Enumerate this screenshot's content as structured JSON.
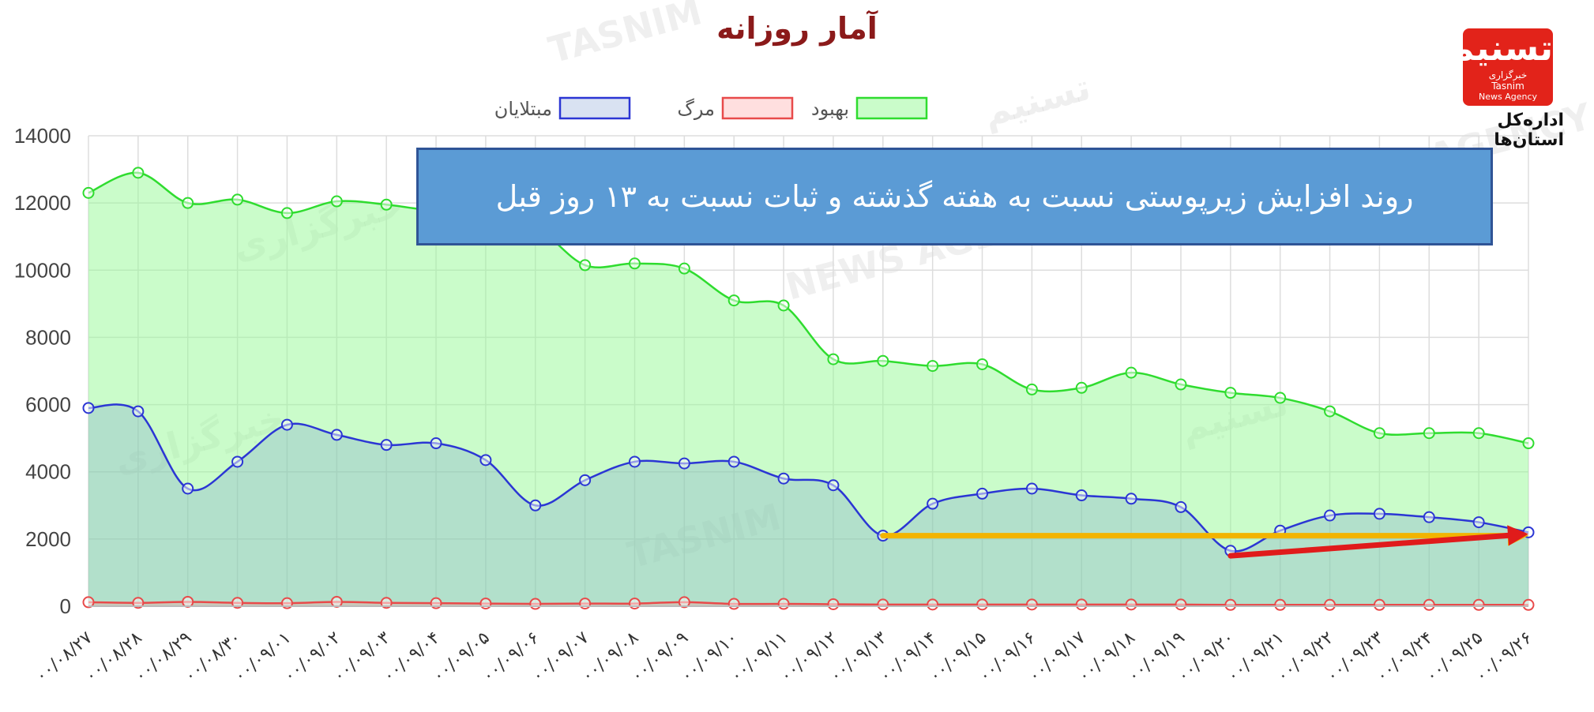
{
  "page": {
    "title": "آمار روزانه",
    "banner": "روند افزایش زیرپوستی نسبت به هفته گذشته و ثبات نسبت به ۱۳ روز قبل",
    "logo": {
      "glyph": "تسنیم",
      "agency_fa": "خبرگزاری",
      "agency_en": "Tasnim",
      "agency_sub": "News Agency",
      "caption": "اداره‌کل استان‌ها",
      "color": "#e2231a"
    },
    "watermarks": [
      "TASNIM",
      "NEWS AGENCY",
      "خبرگزاری",
      "تسنیم"
    ]
  },
  "chart_data": {
    "type": "line",
    "ylim": [
      0,
      14000
    ],
    "yticks": [
      "0",
      "2000",
      "4000",
      "6000",
      "8000",
      "10000",
      "12000",
      "14000"
    ],
    "categories": [
      "۰۰/۰۸/۲۷",
      "۰۰/۰۸/۲۸",
      "۰۰/۰۸/۲۹",
      "۰۰/۰۸/۳۰",
      "۰۰/۰۹/۰۱",
      "۰۰/۰۹/۰۲",
      "۰۰/۰۹/۰۳",
      "۰۰/۰۹/۰۴",
      "۰۰/۰۹/۰۵",
      "۰۰/۰۹/۰۶",
      "۰۰/۰۹/۰۷",
      "۰۰/۰۹/۰۸",
      "۰۰/۰۹/۰۹",
      "۰۰/۰۹/۱۰",
      "۰۰/۰۹/۱۱",
      "۰۰/۰۹/۱۲",
      "۰۰/۰۹/۱۳",
      "۰۰/۰۹/۱۴",
      "۰۰/۰۹/۱۵",
      "۰۰/۰۹/۱۶",
      "۰۰/۰۹/۱۷",
      "۰۰/۰۹/۱۸",
      "۰۰/۰۹/۱۹",
      "۰۰/۰۹/۲۰",
      "۰۰/۰۹/۲۱",
      "۰۰/۰۹/۲۲",
      "۰۰/۰۹/۲۳",
      "۰۰/۰۹/۲۴",
      "۰۰/۰۹/۲۵",
      "۰۰/۰۹/۲۶"
    ],
    "series": [
      {
        "name": "بهبود",
        "stroke": "#2fdc2f",
        "fill": "rgba(150,250,150,0.5)",
        "values": [
          12300,
          12900,
          12000,
          12100,
          11700,
          12050,
          11950,
          11750,
          11600,
          11300,
          10150,
          10200,
          10050,
          9100,
          8950,
          7350,
          7300,
          7150,
          7200,
          6450,
          6500,
          6950,
          6600,
          6350,
          6200,
          5800,
          5150,
          5150,
          5150,
          4850
        ]
      },
      {
        "name": "مبتلایان",
        "stroke": "#2b36d4",
        "fill": "rgba(120,150,210,0.28)",
        "values": [
          5900,
          5800,
          3500,
          4300,
          5400,
          5100,
          4800,
          4850,
          4350,
          3000,
          3750,
          4300,
          4250,
          4300,
          3800,
          3600,
          2100,
          3050,
          3350,
          3500,
          3300,
          3200,
          2950,
          1650,
          2250,
          2700,
          2750,
          2650,
          2500,
          2200
        ]
      },
      {
        "name": "مرگ",
        "stroke": "#e84a4a",
        "fill": "rgba(255,150,150,0.3)",
        "values": [
          120,
          100,
          130,
          100,
          90,
          130,
          100,
          90,
          80,
          70,
          80,
          80,
          120,
          70,
          70,
          60,
          50,
          50,
          50,
          50,
          50,
          50,
          50,
          40,
          40,
          40,
          40,
          40,
          40,
          40
        ]
      }
    ],
    "annotations": [
      {
        "type": "arrow",
        "color": "#f2b400",
        "from": [
          "۰۰/۰۹/۱۳",
          2100
        ],
        "to": [
          "۰۰/۰۹/۲۶",
          2100
        ]
      },
      {
        "type": "arrow",
        "color": "#e01b1b",
        "from": [
          "۰۰/۰۹/۲۰",
          1500
        ],
        "to": [
          "۰۰/۰۹/۲۶",
          2150
        ]
      }
    ],
    "legend_placement": "top-center",
    "grid": true
  }
}
